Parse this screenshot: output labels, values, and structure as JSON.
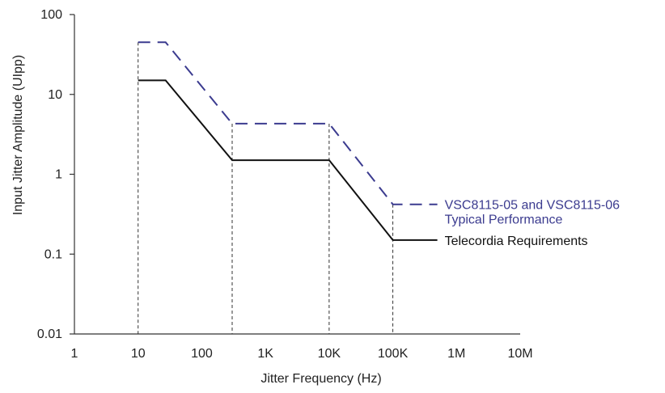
{
  "chart_data": {
    "type": "line",
    "title": "",
    "xlabel": "Jitter Frequency (Hz)",
    "ylabel": "Input Jitter Amplitude (UIpp)",
    "x_scale": "log",
    "y_scale": "log",
    "xlim": [
      1,
      10000000
    ],
    "ylim": [
      0.01,
      100
    ],
    "x_ticks": [
      {
        "value": 1,
        "label": "1"
      },
      {
        "value": 10,
        "label": "10"
      },
      {
        "value": 100,
        "label": "100"
      },
      {
        "value": 1000,
        "label": "1K"
      },
      {
        "value": 10000,
        "label": "10K"
      },
      {
        "value": 100000,
        "label": "100K"
      },
      {
        "value": 1000000,
        "label": "1M"
      },
      {
        "value": 10000000,
        "label": "10M"
      }
    ],
    "y_ticks": [
      {
        "value": 0.01,
        "label": "0.01"
      },
      {
        "value": 0.1,
        "label": "0.1"
      },
      {
        "value": 1,
        "label": "1"
      },
      {
        "value": 10,
        "label": "10"
      },
      {
        "value": 100,
        "label": "100"
      }
    ],
    "grid": false,
    "series": [
      {
        "name": "VSC8115-05 and VSC8115-06 Typical Performance",
        "label_lines": [
          "VSC8115-05 and VSC8115-06",
          "Typical Performance"
        ],
        "color": "#3b3b8f",
        "style": "dashed",
        "points": [
          [
            10,
            45
          ],
          [
            27,
            45
          ],
          [
            300,
            4.3
          ],
          [
            10000,
            4.3
          ],
          [
            100000,
            0.42
          ],
          [
            500000,
            0.42
          ]
        ]
      },
      {
        "name": "Telecordia Requirements",
        "label_lines": [
          "Telecordia Requirements"
        ],
        "color": "#111111",
        "style": "solid",
        "points": [
          [
            10,
            15
          ],
          [
            27,
            15
          ],
          [
            300,
            1.5
          ],
          [
            10000,
            1.5
          ],
          [
            100000,
            0.15
          ],
          [
            500000,
            0.15
          ]
        ]
      }
    ],
    "reference_lines": [
      {
        "x": 10,
        "y_top": 45
      },
      {
        "x": 300,
        "y_top": 4.3
      },
      {
        "x": 10000,
        "y_top": 4.3
      },
      {
        "x": 100000,
        "y_top": 0.42
      }
    ]
  }
}
